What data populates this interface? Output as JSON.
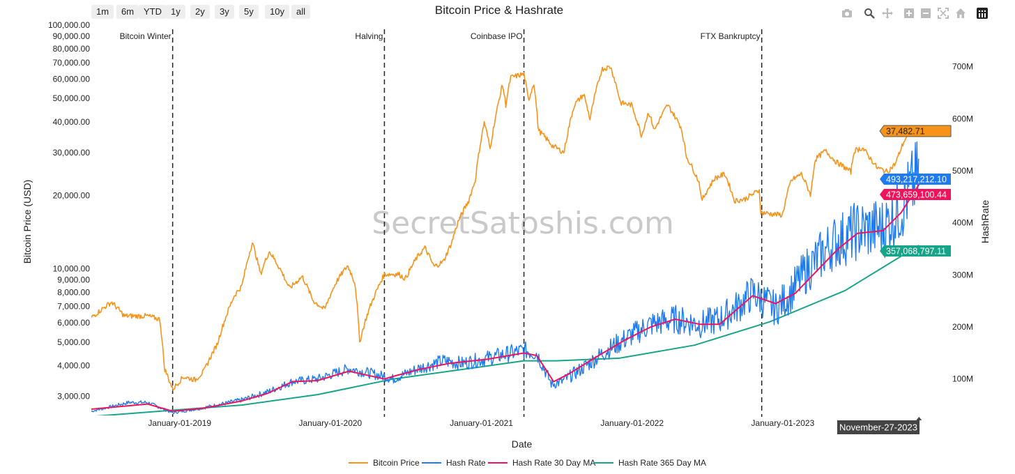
{
  "range_buttons": [
    "1m",
    "6m",
    "YTD",
    "1y",
    "2y",
    "3y",
    "5y",
    "10y",
    "all"
  ],
  "modebar": [
    "camera-icon",
    "zoom-icon",
    "pan-icon",
    "zoom-in-icon",
    "zoom-out-icon",
    "autoscale-icon",
    "home-icon",
    "plotly-logo-icon"
  ],
  "chart_data": {
    "type": "line",
    "title": "Bitcoin Price & Hashrate",
    "xlabel": "Date",
    "ylabel_left": "Bitcoin Price (USD)",
    "ylabel_right": "HashRate",
    "watermark": "SecretSatoshis.com",
    "x_range": [
      "2018-06-01",
      "2023-12-10"
    ],
    "y_left_scale": "log",
    "y_left_range": [
      2500,
      100000
    ],
    "y_right_range": [
      30000000,
      780000000
    ],
    "x_ticks": [
      "January-01-2019",
      "January-01-2020",
      "January-01-2021",
      "January-01-2022",
      "January-01-2023"
    ],
    "y_left_ticks": [
      "3,000.00",
      "4,000.00",
      "5,000.00",
      "6,000.00",
      "7,000.00",
      "8,000.00",
      "9,000.00",
      "10,000.00",
      "20,000.00",
      "30,000.00",
      "40,000.00",
      "50,000.00",
      "60,000.00",
      "70,000.00",
      "80,000.00",
      "90,000.00",
      "100,000.00"
    ],
    "y_right_ticks": [
      "100M",
      "200M",
      "300M",
      "400M",
      "500M",
      "600M",
      "700M"
    ],
    "events": [
      {
        "date": "2018-12-15",
        "label": "Bitcoin Winter"
      },
      {
        "date": "2020-05-11",
        "label": "Halving"
      },
      {
        "date": "2021-04-14",
        "label": "Coinbase IPO"
      },
      {
        "date": "2022-11-11",
        "label": "FTX Bankruptcy"
      }
    ],
    "hover_date": "November-27-2023",
    "series": [
      {
        "name": "Bitcoin Price",
        "axis": "left",
        "color": "#f7931a",
        "last_value_label": "37,482.71",
        "points": [
          [
            "2018-06-01",
            6300
          ],
          [
            "2018-07-20",
            7300
          ],
          [
            "2018-08-20",
            6400
          ],
          [
            "2018-10-15",
            6400
          ],
          [
            "2018-11-14",
            6200
          ],
          [
            "2018-11-25",
            3900
          ],
          [
            "2018-12-15",
            3200
          ],
          [
            "2019-01-10",
            3600
          ],
          [
            "2019-02-08",
            3500
          ],
          [
            "2019-03-01",
            3800
          ],
          [
            "2019-04-02",
            4900
          ],
          [
            "2019-05-14",
            7800
          ],
          [
            "2019-06-01",
            8500
          ],
          [
            "2019-06-26",
            12800
          ],
          [
            "2019-07-16",
            9500
          ],
          [
            "2019-08-06",
            11800
          ],
          [
            "2019-09-01",
            10000
          ],
          [
            "2019-09-24",
            8300
          ],
          [
            "2019-10-25",
            9300
          ],
          [
            "2019-11-20",
            7400
          ],
          [
            "2019-12-18",
            6800
          ],
          [
            "2020-01-15",
            8800
          ],
          [
            "2020-02-12",
            10300
          ],
          [
            "2020-03-01",
            8700
          ],
          [
            "2020-03-12",
            5000
          ],
          [
            "2020-04-01",
            6600
          ],
          [
            "2020-04-30",
            8700
          ],
          [
            "2020-05-11",
            9500
          ],
          [
            "2020-06-15",
            9500
          ],
          [
            "2020-07-01",
            9100
          ],
          [
            "2020-07-27",
            11000
          ],
          [
            "2020-08-17",
            12200
          ],
          [
            "2020-09-08",
            10200
          ],
          [
            "2020-10-01",
            10700
          ],
          [
            "2020-10-21",
            12800
          ],
          [
            "2020-11-05",
            15500
          ],
          [
            "2020-12-01",
            19000
          ],
          [
            "2020-12-17",
            23000
          ],
          [
            "2021-01-08",
            40000
          ],
          [
            "2021-01-22",
            31000
          ],
          [
            "2021-02-08",
            45000
          ],
          [
            "2021-02-21",
            57000
          ],
          [
            "2021-03-01",
            47000
          ],
          [
            "2021-03-13",
            61000
          ],
          [
            "2021-04-14",
            63000
          ],
          [
            "2021-04-25",
            49000
          ],
          [
            "2021-05-08",
            58000
          ],
          [
            "2021-05-19",
            37000
          ],
          [
            "2021-06-22",
            32000
          ],
          [
            "2021-07-20",
            30000
          ],
          [
            "2021-08-14",
            47000
          ],
          [
            "2021-09-06",
            52000
          ],
          [
            "2021-09-21",
            41000
          ],
          [
            "2021-10-20",
            66000
          ],
          [
            "2021-11-10",
            67500
          ],
          [
            "2021-12-04",
            48000
          ],
          [
            "2021-12-31",
            47000
          ],
          [
            "2022-01-24",
            35000
          ],
          [
            "2022-02-10",
            44000
          ],
          [
            "2022-02-24",
            37000
          ],
          [
            "2022-03-28",
            47000
          ],
          [
            "2022-04-30",
            38000
          ],
          [
            "2022-05-12",
            29000
          ],
          [
            "2022-06-13",
            22500
          ],
          [
            "2022-06-18",
            19000
          ],
          [
            "2022-07-20",
            23500
          ],
          [
            "2022-08-14",
            24500
          ],
          [
            "2022-09-06",
            19000
          ],
          [
            "2022-10-01",
            19300
          ],
          [
            "2022-11-05",
            21000
          ],
          [
            "2022-11-09",
            17000
          ],
          [
            "2022-12-31",
            16600
          ],
          [
            "2023-01-21",
            23000
          ],
          [
            "2023-02-15",
            24500
          ],
          [
            "2023-03-10",
            20000
          ],
          [
            "2023-03-20",
            28000
          ],
          [
            "2023-04-14",
            30500
          ],
          [
            "2023-05-10",
            27500
          ],
          [
            "2023-06-15",
            25000
          ],
          [
            "2023-06-23",
            30500
          ],
          [
            "2023-07-13",
            31300
          ],
          [
            "2023-08-17",
            26000
          ],
          [
            "2023-09-11",
            25000
          ],
          [
            "2023-10-01",
            27000
          ],
          [
            "2023-10-24",
            34000
          ],
          [
            "2023-11-09",
            36500
          ],
          [
            "2023-11-27",
            37482.71
          ]
        ]
      },
      {
        "name": "Hash Rate",
        "axis": "right",
        "color": "#1f7bf2",
        "last_value_label": "493,217,212.10",
        "points": [
          [
            "2018-06-01",
            38000000
          ],
          [
            "2018-08-31",
            55000000
          ],
          [
            "2018-10-15",
            55000000
          ],
          [
            "2018-12-15",
            35000000
          ],
          [
            "2019-03-01",
            45000000
          ],
          [
            "2019-06-01",
            60000000
          ],
          [
            "2019-08-01",
            75000000
          ],
          [
            "2019-10-01",
            95000000
          ],
          [
            "2019-12-01",
            100000000
          ],
          [
            "2020-02-15",
            120000000
          ],
          [
            "2020-05-11",
            105000000
          ],
          [
            "2020-06-01",
            100000000
          ],
          [
            "2020-08-01",
            120000000
          ],
          [
            "2020-10-01",
            135000000
          ],
          [
            "2020-11-15",
            130000000
          ],
          [
            "2021-01-15",
            140000000
          ],
          [
            "2021-04-14",
            155000000
          ],
          [
            "2021-05-15",
            150000000
          ],
          [
            "2021-06-20",
            90000000
          ],
          [
            "2021-07-15",
            95000000
          ],
          [
            "2021-09-01",
            120000000
          ],
          [
            "2021-11-01",
            155000000
          ],
          [
            "2022-01-01",
            185000000
          ],
          [
            "2022-02-15",
            205000000
          ],
          [
            "2022-04-15",
            215000000
          ],
          [
            "2022-06-15",
            205000000
          ],
          [
            "2022-08-01",
            215000000
          ],
          [
            "2022-09-15",
            240000000
          ],
          [
            "2022-10-20",
            265000000
          ],
          [
            "2022-12-15",
            235000000
          ],
          [
            "2023-01-15",
            260000000
          ],
          [
            "2023-03-01",
            310000000
          ],
          [
            "2023-05-01",
            360000000
          ],
          [
            "2023-07-01",
            385000000
          ],
          [
            "2023-09-01",
            390000000
          ],
          [
            "2023-10-15",
            430000000
          ],
          [
            "2023-11-27",
            493217212.1
          ]
        ]
      },
      {
        "name": "Hash Rate 30 Day MA",
        "axis": "right",
        "color": "#f0135b",
        "last_value_label": "473,659,100.44",
        "points": [
          [
            "2018-06-01",
            42000000
          ],
          [
            "2018-10-15",
            52000000
          ],
          [
            "2018-12-15",
            38000000
          ],
          [
            "2019-03-01",
            44000000
          ],
          [
            "2019-06-01",
            58000000
          ],
          [
            "2019-08-01",
            72000000
          ],
          [
            "2019-10-01",
            95000000
          ],
          [
            "2019-12-01",
            97000000
          ],
          [
            "2020-02-15",
            115000000
          ],
          [
            "2020-05-11",
            100000000
          ],
          [
            "2020-06-01",
            105000000
          ],
          [
            "2020-08-01",
            118000000
          ],
          [
            "2020-10-15",
            130000000
          ],
          [
            "2021-01-15",
            138000000
          ],
          [
            "2021-04-14",
            150000000
          ],
          [
            "2021-05-15",
            145000000
          ],
          [
            "2021-06-25",
            95000000
          ],
          [
            "2021-08-01",
            110000000
          ],
          [
            "2021-10-01",
            140000000
          ],
          [
            "2021-12-15",
            175000000
          ],
          [
            "2022-02-15",
            200000000
          ],
          [
            "2022-04-15",
            215000000
          ],
          [
            "2022-06-15",
            205000000
          ],
          [
            "2022-08-01",
            205000000
          ],
          [
            "2022-10-20",
            260000000
          ],
          [
            "2022-12-15",
            245000000
          ],
          [
            "2023-02-01",
            265000000
          ],
          [
            "2023-03-15",
            300000000
          ],
          [
            "2023-05-15",
            350000000
          ],
          [
            "2023-07-01",
            380000000
          ],
          [
            "2023-09-01",
            385000000
          ],
          [
            "2023-10-15",
            420000000
          ],
          [
            "2023-11-27",
            473659100.44
          ]
        ]
      },
      {
        "name": "Hash Rate 365 Day MA",
        "axis": "right",
        "color": "#17a589",
        "last_value_label": "357,068,797.11",
        "points": [
          [
            "2018-06-01",
            28000000
          ],
          [
            "2018-12-15",
            40000000
          ],
          [
            "2019-06-01",
            50000000
          ],
          [
            "2019-12-01",
            70000000
          ],
          [
            "2020-06-01",
            100000000
          ],
          [
            "2020-12-01",
            120000000
          ],
          [
            "2021-04-14",
            135000000
          ],
          [
            "2021-07-01",
            135000000
          ],
          [
            "2021-12-01",
            140000000
          ],
          [
            "2022-06-01",
            165000000
          ],
          [
            "2022-12-01",
            210000000
          ],
          [
            "2023-06-01",
            270000000
          ],
          [
            "2023-11-27",
            357068797.11
          ]
        ]
      }
    ]
  }
}
